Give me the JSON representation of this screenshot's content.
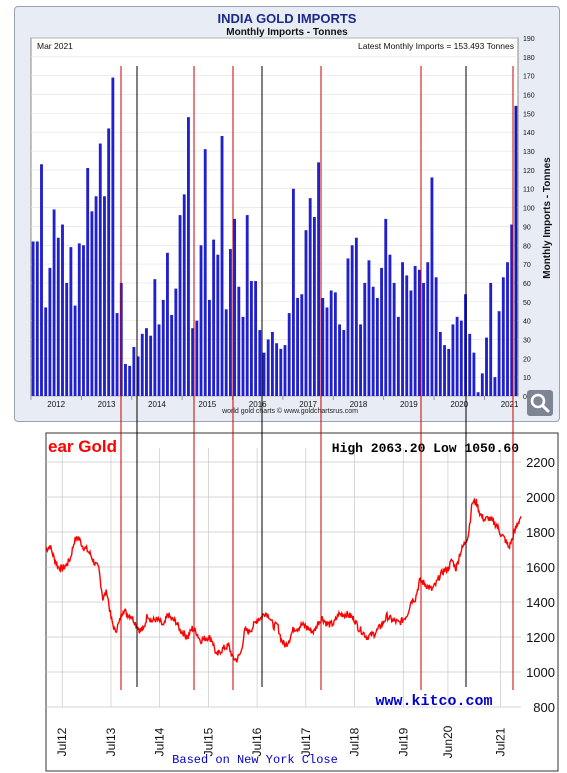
{
  "chart_data": [
    {
      "type": "bar",
      "title": "INDIA GOLD IMPORTS",
      "subtitle": "Monthly Imports - Tonnes",
      "ylabel": "Monthly Imports - Tonnes",
      "date_label": "Mar 2021",
      "latest_label": "Latest Monthly Imports = 153.493 Tonnes",
      "credit": "world gold charts © www.goldchartsrus.com",
      "ylim": [
        0,
        190
      ],
      "yticks": [
        0,
        10,
        20,
        30,
        40,
        50,
        60,
        70,
        80,
        90,
        100,
        110,
        120,
        130,
        140,
        150,
        160,
        170,
        180,
        190
      ],
      "year_labels": [
        "2012",
        "2013",
        "2014",
        "2015",
        "2016",
        "2017",
        "2018",
        "2019",
        "2020",
        "2021"
      ],
      "bar_color": "#2020cc",
      "x_start": "2012-01",
      "series": [
        {
          "values": [
            82,
            82,
            123,
            47,
            68,
            99,
            84,
            91,
            60,
            79,
            48,
            81,
            80,
            121,
            98,
            106,
            134,
            106,
            142,
            169,
            44,
            60,
            17,
            16,
            26,
            21,
            33,
            36,
            32,
            62,
            38,
            51,
            76,
            43,
            57,
            96,
            107,
            148,
            36,
            40,
            80,
            131,
            51,
            83,
            75,
            138,
            46,
            78,
            94,
            58,
            42,
            96,
            61,
            61,
            35,
            23,
            30,
            34,
            28,
            25,
            27,
            44,
            110,
            52,
            54,
            88,
            105,
            95,
            124,
            52,
            47,
            56,
            55,
            38,
            35,
            73,
            80,
            84,
            38,
            60,
            72,
            58,
            52,
            68,
            94,
            75,
            60,
            42,
            71,
            64,
            56,
            69,
            67,
            60,
            71,
            116,
            63,
            34,
            27,
            25,
            38,
            42,
            40,
            54,
            33,
            23,
            2,
            12,
            31,
            60,
            10,
            45,
            63,
            71,
            91,
            154
          ]
        }
      ],
      "highlight_index": 115
    },
    {
      "type": "line",
      "title": "ear Gold",
      "high_low_label": "High 2063.20 Low 1050.60",
      "watermark": "www.kitco.com",
      "footer": "Based on New York Close",
      "ylim": [
        800,
        2200
      ],
      "yticks": [
        800,
        1000,
        1200,
        1400,
        1600,
        1800,
        2000,
        2200
      ],
      "xticks": [
        "Jul12",
        "Jul13",
        "Jul14",
        "Jul15",
        "Jul16",
        "Jul17",
        "Jul18",
        "Jul19",
        "Jun20",
        "Jul21"
      ],
      "line_color": "#ff0000",
      "x_start": "2012-03",
      "series": [
        {
          "values": [
            1700,
            1720,
            1650,
            1600,
            1590,
            1610,
            1650,
            1750,
            1770,
            1720,
            1700,
            1670,
            1620,
            1590,
            1420,
            1460,
            1310,
            1230,
            1280,
            1360,
            1330,
            1320,
            1280,
            1240,
            1240,
            1330,
            1290,
            1300,
            1290,
            1260,
            1330,
            1300,
            1290,
            1240,
            1220,
            1200,
            1250,
            1230,
            1180,
            1190,
            1200,
            1180,
            1090,
            1120,
            1140,
            1150,
            1080,
            1070,
            1110,
            1240,
            1230,
            1260,
            1300,
            1310,
            1340,
            1320,
            1260,
            1270,
            1180,
            1150,
            1190,
            1250,
            1250,
            1270,
            1260,
            1240,
            1230,
            1280,
            1310,
            1280,
            1270,
            1280,
            1330,
            1330,
            1330,
            1320,
            1300,
            1250,
            1230,
            1200,
            1210,
            1220,
            1250,
            1280,
            1320,
            1300,
            1290,
            1280,
            1300,
            1330,
            1410,
            1420,
            1520,
            1510,
            1490,
            1470,
            1500,
            1550,
            1580,
            1590,
            1640,
            1590,
            1680,
            1730,
            1780,
            1970,
            1970,
            1900,
            1870,
            1880,
            1860,
            1840,
            1790,
            1760,
            1710,
            1770,
            1840,
            1890
          ]
        }
      ]
    }
  ]
}
